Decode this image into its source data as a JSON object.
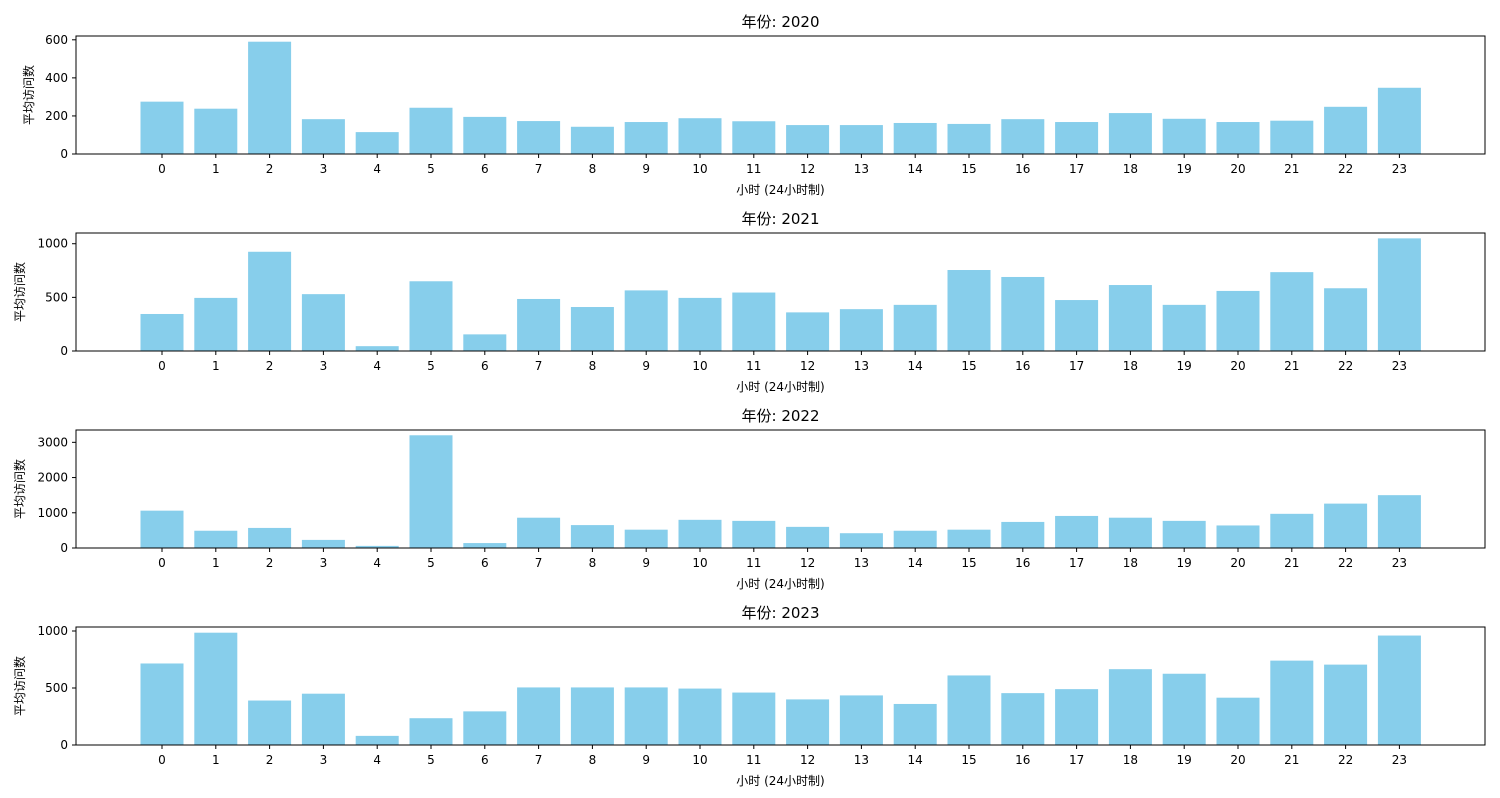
{
  "chart_data": [
    {
      "type": "bar",
      "title": "年份: 2020",
      "xlabel": "小时 (24小时制)",
      "ylabel": "平均访问数",
      "categories": [
        "0",
        "1",
        "2",
        "3",
        "4",
        "5",
        "6",
        "7",
        "8",
        "9",
        "10",
        "11",
        "12",
        "13",
        "14",
        "15",
        "16",
        "17",
        "18",
        "19",
        "20",
        "21",
        "22",
        "23"
      ],
      "values": [
        275,
        238,
        590,
        183,
        115,
        243,
        195,
        173,
        143,
        168,
        188,
        172,
        152,
        152,
        163,
        158,
        183,
        168,
        215,
        185,
        168,
        175,
        248,
        348
      ],
      "ylim": [
        0,
        620
      ],
      "yticks": [
        0,
        200,
        400,
        600
      ],
      "color": "#87CEEB"
    },
    {
      "type": "bar",
      "title": "年份: 2021",
      "xlabel": "小时 (24小时制)",
      "ylabel": "平均访问数",
      "categories": [
        "0",
        "1",
        "2",
        "3",
        "4",
        "5",
        "6",
        "7",
        "8",
        "9",
        "10",
        "11",
        "12",
        "13",
        "14",
        "15",
        "16",
        "17",
        "18",
        "19",
        "20",
        "21",
        "22",
        "23"
      ],
      "values": [
        345,
        495,
        925,
        530,
        45,
        650,
        155,
        485,
        410,
        565,
        495,
        545,
        360,
        390,
        430,
        755,
        690,
        475,
        615,
        430,
        560,
        735,
        585,
        1050
      ],
      "ylim": [
        0,
        1100
      ],
      "yticks": [
        0,
        500,
        1000
      ],
      "color": "#87CEEB"
    },
    {
      "type": "bar",
      "title": "年份: 2022",
      "xlabel": "小时 (24小时制)",
      "ylabel": "平均访问数",
      "categories": [
        "0",
        "1",
        "2",
        "3",
        "4",
        "5",
        "6",
        "7",
        "8",
        "9",
        "10",
        "11",
        "12",
        "13",
        "14",
        "15",
        "16",
        "17",
        "18",
        "19",
        "20",
        "21",
        "22",
        "23"
      ],
      "values": [
        1060,
        490,
        570,
        230,
        60,
        3200,
        140,
        860,
        650,
        520,
        800,
        770,
        600,
        420,
        490,
        520,
        740,
        910,
        860,
        770,
        640,
        970,
        1260,
        1500
      ],
      "ylim": [
        0,
        3350
      ],
      "yticks": [
        0,
        1000,
        2000,
        3000
      ],
      "color": "#87CEEB"
    },
    {
      "type": "bar",
      "title": "年份: 2023",
      "xlabel": "小时 (24小时制)",
      "ylabel": "平均访问数",
      "categories": [
        "0",
        "1",
        "2",
        "3",
        "4",
        "5",
        "6",
        "7",
        "8",
        "9",
        "10",
        "11",
        "12",
        "13",
        "14",
        "15",
        "16",
        "17",
        "18",
        "19",
        "20",
        "21",
        "22",
        "23"
      ],
      "values": [
        715,
        985,
        390,
        450,
        80,
        235,
        295,
        505,
        505,
        505,
        495,
        460,
        400,
        435,
        360,
        610,
        455,
        490,
        665,
        625,
        415,
        740,
        705,
        960
      ],
      "ylim": [
        0,
        1035
      ],
      "yticks": [
        0,
        500,
        1000
      ],
      "color": "#87CEEB"
    }
  ]
}
